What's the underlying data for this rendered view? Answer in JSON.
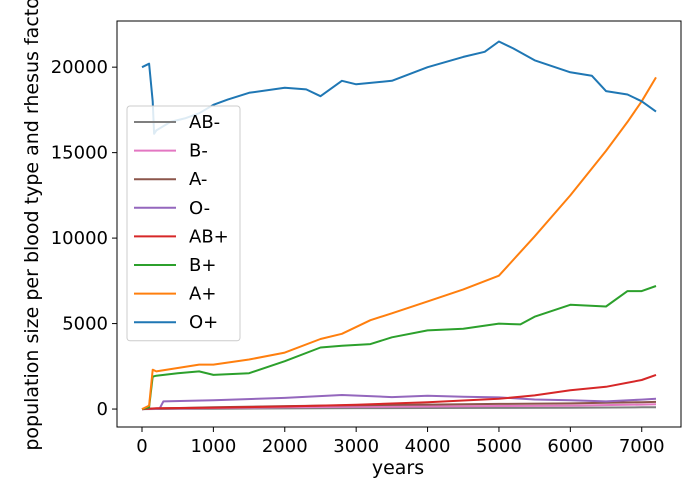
{
  "chart_data": {
    "type": "line",
    "xlabel": "years",
    "ylabel": "population size per blood type and rhesus factor",
    "xlim": [
      -350,
      7550
    ],
    "ylim": [
      -1050,
      22700
    ],
    "xticks": [
      0,
      1000,
      2000,
      3000,
      4000,
      5000,
      6000,
      7000
    ],
    "yticks": [
      0,
      5000,
      10000,
      15000,
      20000
    ],
    "grid": false,
    "legend_position": "center-left",
    "series": [
      {
        "name": "AB-",
        "color": "#7f7f7f",
        "x": [
          0,
          200,
          1000,
          2000,
          3000,
          4000,
          5000,
          6000,
          7000,
          7200
        ],
        "y": [
          0,
          5,
          20,
          40,
          55,
          60,
          70,
          80,
          100,
          100
        ]
      },
      {
        "name": "B-",
        "color": "#e377c2",
        "x": [
          0,
          200,
          1000,
          2000,
          3000,
          4000,
          5000,
          6000,
          7000,
          7200
        ],
        "y": [
          0,
          20,
          60,
          100,
          130,
          150,
          180,
          200,
          260,
          280
        ]
      },
      {
        "name": "A-",
        "color": "#8c564b",
        "x": [
          0,
          200,
          1000,
          2000,
          3000,
          4000,
          5000,
          6000,
          7000,
          7200
        ],
        "y": [
          0,
          30,
          100,
          170,
          220,
          260,
          300,
          330,
          400,
          420
        ]
      },
      {
        "name": "O-",
        "color": "#9467bd",
        "x": [
          0,
          250,
          300,
          1000,
          2000,
          2800,
          3500,
          4000,
          4500,
          5000,
          5500,
          6000,
          6500,
          7000,
          7200
        ],
        "y": [
          0,
          50,
          450,
          520,
          650,
          820,
          700,
          780,
          720,
          680,
          560,
          520,
          450,
          550,
          600
        ]
      },
      {
        "name": "AB+",
        "color": "#d62728",
        "x": [
          0,
          200,
          1000,
          2000,
          3000,
          4000,
          5000,
          5500,
          6000,
          6500,
          7000,
          7200
        ],
        "y": [
          0,
          50,
          80,
          150,
          250,
          400,
          600,
          800,
          1100,
          1300,
          1700,
          2000
        ]
      },
      {
        "name": "B+",
        "color": "#2ca02c",
        "x": [
          0,
          100,
          150,
          200,
          500,
          800,
          1000,
          1500,
          2000,
          2500,
          2800,
          3200,
          3500,
          4000,
          4500,
          5000,
          5300,
          5500,
          6000,
          6500,
          6800,
          7000,
          7200
        ],
        "y": [
          0,
          100,
          1900,
          1950,
          2100,
          2200,
          2000,
          2100,
          2800,
          3600,
          3700,
          3800,
          4200,
          4600,
          4700,
          5000,
          4950,
          5400,
          6100,
          6000,
          6900,
          6900,
          7200
        ]
      },
      {
        "name": "A+",
        "color": "#ff7f0e",
        "x": [
          0,
          100,
          150,
          200,
          500,
          800,
          1000,
          1500,
          2000,
          2500,
          2800,
          3200,
          3500,
          4000,
          4500,
          5000,
          5500,
          6000,
          6500,
          6800,
          7000,
          7200
        ],
        "y": [
          0,
          200,
          2300,
          2200,
          2400,
          2600,
          2600,
          2900,
          3300,
          4100,
          4400,
          5200,
          5600,
          6300,
          7000,
          7800,
          10100,
          12500,
          15100,
          16800,
          18000,
          19400
        ]
      },
      {
        "name": "O+",
        "color": "#1f77b4",
        "x": [
          0,
          100,
          150,
          170,
          200,
          400,
          600,
          800,
          1000,
          1200,
          1500,
          2000,
          2300,
          2500,
          2800,
          3000,
          3500,
          4000,
          4500,
          4800,
          5000,
          5200,
          5500,
          6000,
          6300,
          6500,
          6800,
          7000,
          7200
        ],
        "y": [
          20000,
          20200,
          18000,
          16100,
          16300,
          16800,
          17000,
          17300,
          17800,
          18100,
          18500,
          18800,
          18700,
          18300,
          19200,
          19000,
          19200,
          20000,
          20600,
          20900,
          21500,
          21100,
          20400,
          19700,
          19500,
          18600,
          18400,
          18000,
          17400
        ]
      }
    ]
  }
}
